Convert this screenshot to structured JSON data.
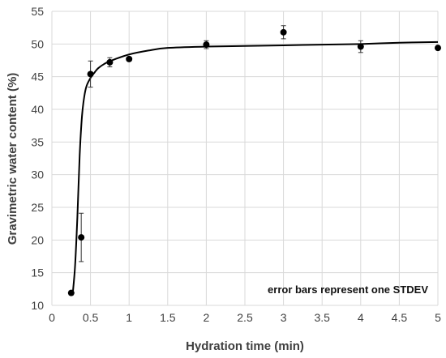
{
  "chart_data": {
    "type": "scatter",
    "xlabel": "Hydration time (min)",
    "ylabel": "Gravimetric water content (%)",
    "xlim": [
      0,
      5
    ],
    "ylim": [
      10,
      55
    ],
    "x_ticks": [
      0,
      0.5,
      1,
      1.5,
      2,
      2.5,
      3,
      3.5,
      4,
      4.5,
      5
    ],
    "x_tick_labels": [
      "0",
      "0.5",
      "1",
      "1.5",
      "2",
      "2.5",
      "3",
      "3.5",
      "4",
      "4.5",
      "5"
    ],
    "y_ticks": [
      10,
      15,
      20,
      25,
      30,
      35,
      40,
      45,
      50,
      55
    ],
    "y_tick_labels": [
      "10",
      "15",
      "20",
      "25",
      "30",
      "35",
      "40",
      "45",
      "50",
      "55"
    ],
    "grid": {
      "vertical": true,
      "horizontal": true
    },
    "annotation": "error bars represent one STDEV",
    "series": [
      {
        "points": [
          {
            "x": 0.25,
            "y": 11.9,
            "err": 0.3
          },
          {
            "x": 0.38,
            "y": 20.4,
            "err": 3.7
          },
          {
            "x": 0.5,
            "y": 45.4,
            "err": 2.0
          },
          {
            "x": 0.75,
            "y": 47.2,
            "err": 0.7
          },
          {
            "x": 1.0,
            "y": 47.7,
            "err": 0.3
          },
          {
            "x": 2.0,
            "y": 49.9,
            "err": 0.6
          },
          {
            "x": 3.0,
            "y": 51.8,
            "err": 1.0
          },
          {
            "x": 4.0,
            "y": 49.6,
            "err": 0.9
          },
          {
            "x": 5.0,
            "y": 49.4,
            "err": 0.2
          }
        ]
      }
    ],
    "fit_curve": {
      "x": [
        0.27,
        0.3,
        0.33,
        0.36,
        0.39,
        0.42,
        0.45,
        0.5,
        0.55,
        0.6,
        0.7,
        0.8,
        1.0,
        1.25,
        1.5,
        2.0,
        2.5,
        3.0,
        3.5,
        4.0,
        4.5,
        5.0
      ],
      "y": [
        11.8,
        16.0,
        23.5,
        33.0,
        39.0,
        42.0,
        43.6,
        44.8,
        45.6,
        46.3,
        47.1,
        47.6,
        48.4,
        49.0,
        49.4,
        49.6,
        49.7,
        49.8,
        49.9,
        50.0,
        50.2,
        50.3
      ]
    },
    "colors": {
      "marker": "#000000",
      "line": "#000000",
      "grid": "#d9d9d9",
      "text": "#404040"
    }
  }
}
